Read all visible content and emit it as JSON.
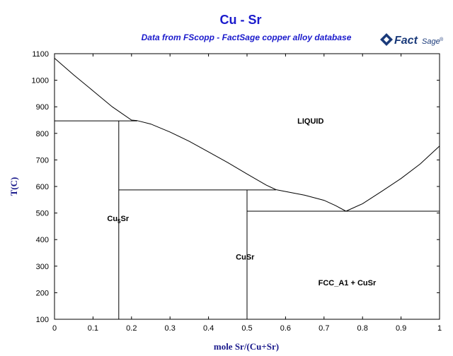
{
  "chart_data": {
    "type": "line",
    "title": "Cu - Sr",
    "subtitle": "Data from FScopp - FactSage copper alloy database",
    "xlabel": "mole Sr/(Cu+Sr)",
    "ylabel": "T(C)",
    "xlim": [
      0,
      1
    ],
    "ylim": [
      100,
      1100
    ],
    "x_ticks": [
      "0",
      "0.1",
      "0.2",
      "0.3",
      "0.4",
      "0.5",
      "0.6",
      "0.7",
      "0.8",
      "0.9",
      "1"
    ],
    "y_ticks": [
      "100",
      "200",
      "300",
      "400",
      "500",
      "600",
      "700",
      "800",
      "900",
      "1000",
      "1100"
    ],
    "x_tick_values": [
      0,
      0.1,
      0.2,
      0.3,
      0.4,
      0.5,
      0.6,
      0.7,
      0.8,
      0.9,
      1
    ],
    "y_tick_values": [
      100,
      200,
      300,
      400,
      500,
      600,
      700,
      800,
      900,
      1000,
      1100
    ],
    "grid": false,
    "series": [
      {
        "points": [
          [
            0,
            1083
          ],
          [
            0.05,
            1020
          ],
          [
            0.1,
            960
          ],
          [
            0.15,
            900
          ],
          [
            0.2,
            850
          ],
          [
            0.215,
            848
          ]
        ]
      },
      {
        "points": [
          [
            0.215,
            848
          ],
          [
            0.25,
            835
          ],
          [
            0.3,
            805
          ],
          [
            0.35,
            770
          ],
          [
            0.4,
            730
          ],
          [
            0.45,
            690
          ],
          [
            0.5,
            647
          ],
          [
            0.55,
            605
          ],
          [
            0.575,
            588
          ]
        ]
      },
      {
        "points": [
          [
            0.575,
            588
          ],
          [
            0.6,
            581
          ],
          [
            0.65,
            567
          ],
          [
            0.7,
            548
          ],
          [
            0.73,
            528
          ],
          [
            0.757,
            507
          ]
        ]
      },
      {
        "points": [
          [
            0.757,
            507
          ],
          [
            0.8,
            535
          ],
          [
            0.85,
            582
          ],
          [
            0.9,
            630
          ],
          [
            0.95,
            685
          ],
          [
            1,
            752
          ]
        ]
      },
      {
        "points": [
          [
            0,
            847
          ],
          [
            0.215,
            847
          ]
        ]
      },
      {
        "points": [
          [
            0.167,
            100
          ],
          [
            0.167,
            847
          ]
        ]
      },
      {
        "points": [
          [
            0.167,
            587
          ],
          [
            0.575,
            587
          ]
        ]
      },
      {
        "points": [
          [
            0.5,
            100
          ],
          [
            0.5,
            587
          ]
        ]
      },
      {
        "points": [
          [
            0.5,
            507
          ],
          [
            1,
            507
          ]
        ]
      }
    ],
    "annotations": [
      {
        "text": "LIQUID",
        "x": 0.665,
        "y": 848
      },
      {
        "text": "Cu",
        "sub": "5",
        "tail": "Sr",
        "x": 0.165,
        "y": 480
      },
      {
        "text": "CuSr",
        "x": 0.495,
        "y": 335
      },
      {
        "text": "FCC_A1 + CuSr",
        "x": 0.76,
        "y": 238
      }
    ]
  },
  "logo": {
    "text": "Fact",
    "text2": "Sage",
    "mark": "®"
  }
}
